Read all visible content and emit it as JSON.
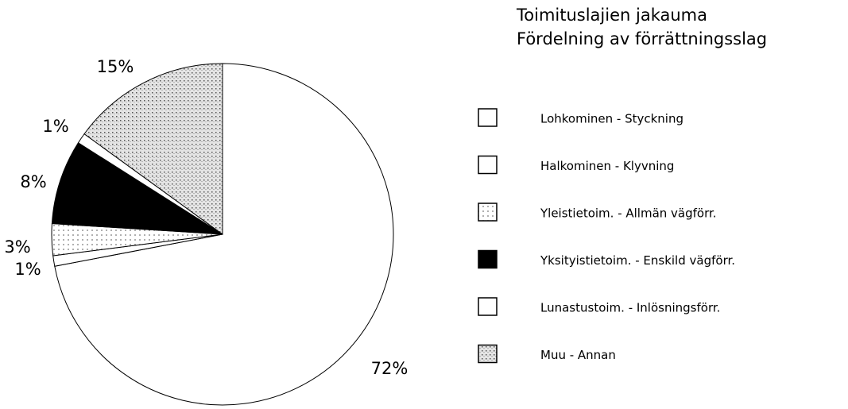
{
  "chart_data": {
    "type": "pie",
    "title": "Toimituslajien jakauma",
    "subtitle": "Fördelning av förrättningsslag",
    "categories": [
      "Lohkominen - Styckning",
      "Halkominen - Klyvning",
      "Yleistietoim. - Allmän vägförr.",
      "Yksityistietoim. - Enskild vägförr.",
      "Lunastustoim. - Inlösningsförr.",
      "Muu - Annan"
    ],
    "values": [
      72,
      1,
      3,
      8,
      1,
      15
    ],
    "value_labels": [
      "72%",
      "1%",
      "3%",
      "8%",
      "1%",
      "15%"
    ],
    "colors": [
      "#ffffff",
      "#ffffff",
      "#ececec",
      "#000000",
      "#ffffff",
      "#c8c8c8"
    ]
  }
}
